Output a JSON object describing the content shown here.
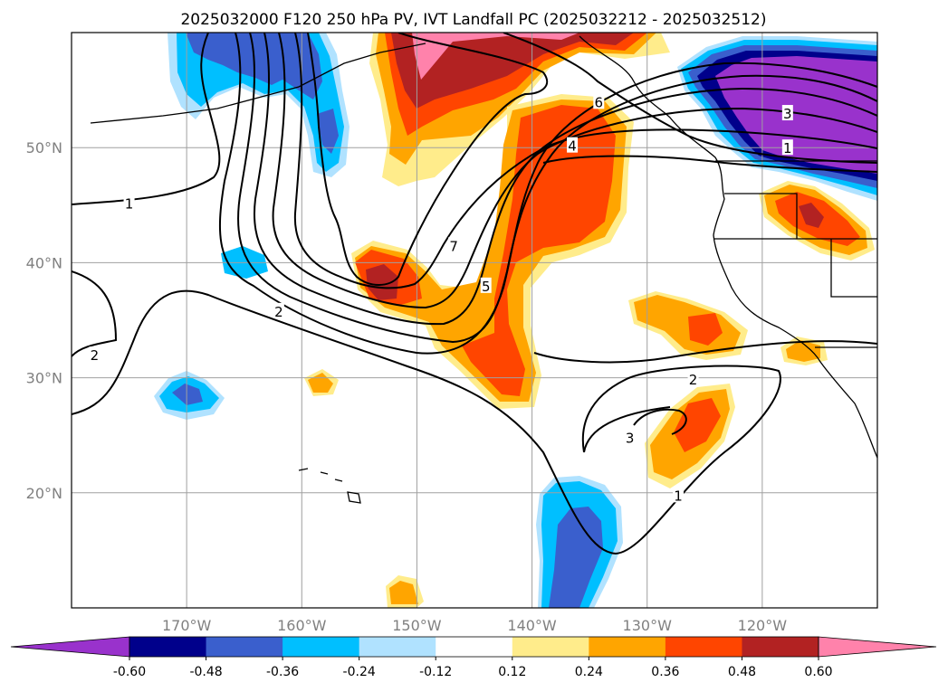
{
  "title": "2025032000 F120 250 hPa PV, IVT Landfall PC (2025032212 - 2025032512)",
  "map": {
    "projection": "PlateCarree",
    "lon_range": [
      -180,
      -110
    ],
    "lat_range": [
      10,
      60
    ],
    "gridlines": true,
    "lat_ticks": [
      {
        "lat": 50,
        "label": "50°N"
      },
      {
        "lat": 40,
        "label": "40°N"
      },
      {
        "lat": 30,
        "label": "30°N"
      },
      {
        "lat": 20,
        "label": "20°N"
      }
    ],
    "lon_ticks": [
      {
        "lon": -170,
        "label": "170°W"
      },
      {
        "lon": -160,
        "label": "160°W"
      },
      {
        "lon": -150,
        "label": "150°W"
      },
      {
        "lon": -140,
        "label": "140°W"
      },
      {
        "lon": -130,
        "label": "130°W"
      },
      {
        "lon": -120,
        "label": "120°W"
      }
    ]
  },
  "pv_contours": {
    "color": "#000000",
    "labels": [
      {
        "text": "1",
        "lon": -175,
        "lat": 45.2
      },
      {
        "text": "2",
        "lon": -162,
        "lat": 35.8
      },
      {
        "text": "2",
        "lon": -178,
        "lat": 32.0
      },
      {
        "text": "7",
        "lon": -146.8,
        "lat": 41.5
      },
      {
        "text": "5",
        "lon": -144,
        "lat": 38.0
      },
      {
        "text": "4",
        "lon": -136.5,
        "lat": 50.2
      },
      {
        "text": "6",
        "lon": -134.2,
        "lat": 54.0
      },
      {
        "text": "3",
        "lon": -117.8,
        "lat": 53.0
      },
      {
        "text": "1",
        "lon": -117.8,
        "lat": 50.0
      },
      {
        "text": "2",
        "lon": -126,
        "lat": 29.9
      },
      {
        "text": "3",
        "lon": -131.5,
        "lat": 24.8
      },
      {
        "text": "1",
        "lon": -127.3,
        "lat": 19.8
      }
    ]
  },
  "colorbar": {
    "ticks": [
      "-0.60",
      "-0.48",
      "-0.36",
      "-0.24",
      "-0.12",
      "0.12",
      "0.24",
      "0.36",
      "0.48",
      "0.60"
    ],
    "colors": [
      "#9932CC",
      "#00008B",
      "#3A5FCD",
      "#00BFFF",
      "#B0E2FF",
      "#FFFFFF",
      "#FFEC8B",
      "#FFA500",
      "#FF4500",
      "#B22222",
      "#FF82AB"
    ]
  }
}
